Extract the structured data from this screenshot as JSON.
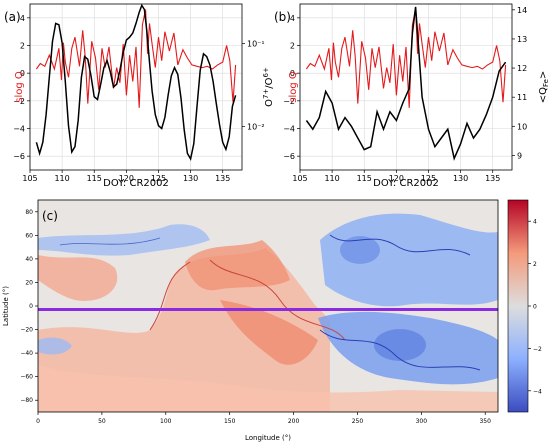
{
  "chart_data": [
    {
      "panel": "(a)",
      "type": "line",
      "xlabel": "DOY: CR2002",
      "ylabel_left": "slog Q",
      "ylabel_right": "O7+/O6+",
      "xlim": [
        105,
        138
      ],
      "ylim_left": [
        -7,
        5
      ],
      "ylim_right_log": [
        0.003,
        0.3
      ],
      "xticks": [
        105,
        110,
        115,
        120,
        125,
        130,
        135
      ],
      "yticks_left": [
        -6,
        -4,
        -2,
        0,
        2,
        4
      ],
      "yticks_right": [
        "10⁻²",
        "10⁻¹"
      ],
      "grid": true,
      "series": [
        {
          "label": "slog Q",
          "color": "#e41a1c",
          "x": [
            106,
            106.6,
            107.3,
            108,
            108.8,
            109.5,
            109.9,
            110.2,
            110.5,
            111,
            111.5,
            112,
            112.7,
            113.2,
            113.6,
            114,
            114.6,
            115.2,
            115.7,
            116.2,
            116.7,
            117.3,
            118,
            118.5,
            119,
            119.5,
            120,
            120.5,
            121,
            121.5,
            122,
            122.5,
            123,
            123.3,
            123.6,
            124,
            124.5,
            125,
            125.5,
            126,
            126.7,
            127.4,
            128,
            128.8,
            129.5,
            130.2,
            131,
            131.8,
            132.6,
            133.4,
            134.2,
            135,
            135.6,
            136.1,
            136.6,
            137
          ],
          "y": [
            0.3,
            0.7,
            0.5,
            1.3,
            0.3,
            1.8,
            -0.5,
            2.2,
            0.8,
            -0.3,
            1.8,
            2.6,
            0.5,
            3.1,
            1.2,
            -2.2,
            2.3,
            1.1,
            -1.2,
            1.8,
            0.4,
            1.9,
            -1.1,
            0.4,
            -0.7,
            2.1,
            -1.6,
            1.3,
            -0.6,
            1.9,
            -2.5,
            3.5,
            4.6,
            1.4,
            3.6,
            2.1,
            0.4,
            2.6,
            0.9,
            3.0,
            1.6,
            2.9,
            0.6,
            1.7,
            1.1,
            0.6,
            0.5,
            0.4,
            0.5,
            0.3,
            0.6,
            0.8,
            2.0,
            0.9,
            -2.1,
            0.6
          ]
        },
        {
          "label": "O7+/O6+",
          "color": "#000000",
          "x": [
            106,
            106.5,
            107,
            107.5,
            108,
            108.5,
            109,
            109.5,
            110,
            110.5,
            111,
            111.5,
            112,
            112.5,
            113,
            113.5,
            114,
            114.5,
            115,
            115.5,
            116,
            116.5,
            117,
            117.5,
            118,
            118.5,
            119,
            119.5,
            120,
            120.5,
            121,
            121.5,
            122,
            122.4,
            122.8,
            123.2,
            123.6,
            124,
            124.5,
            125,
            125.5,
            126,
            126.5,
            127,
            127.5,
            128,
            128.5,
            129,
            129.5,
            130,
            130.5,
            131,
            131.5,
            132,
            132.5,
            133,
            133.5,
            134,
            134.5,
            135,
            135.5,
            136,
            136.5,
            137
          ],
          "y": [
            -5.0,
            -5.8,
            -5.0,
            -3.0,
            -0.3,
            2.3,
            3.6,
            3.5,
            2.2,
            -0.6,
            -3.8,
            -5.7,
            -5.3,
            -3.4,
            -0.3,
            1.2,
            1.0,
            -0.2,
            -1.7,
            -1.9,
            -0.8,
            0.4,
            0.9,
            0.1,
            -1.0,
            -0.8,
            0.2,
            1.5,
            2.4,
            2.6,
            2.9,
            3.6,
            4.4,
            4.9,
            4.6,
            3.0,
            0.8,
            -1.3,
            -3.0,
            -3.8,
            -4.0,
            -3.2,
            -1.6,
            -0.2,
            0.4,
            -0.1,
            -1.8,
            -4.1,
            -5.8,
            -6.2,
            -5.1,
            -2.4,
            0.2,
            1.4,
            1.2,
            0.6,
            -0.6,
            -2.2,
            -3.7,
            -5.0,
            -5.5,
            -4.6,
            -2.4,
            -1.6
          ]
        }
      ]
    },
    {
      "panel": "(b)",
      "type": "line",
      "xlabel": "DOY: CR2002",
      "ylabel_left": "slog Q",
      "ylabel_right": "<Q_Fe>",
      "xlim": [
        105,
        138
      ],
      "ylim_left": [
        -7,
        5
      ],
      "ylim_right": [
        8.5,
        14.2
      ],
      "xticks": [
        105,
        110,
        115,
        120,
        125,
        130,
        135
      ],
      "yticks_left": [
        -6,
        -4,
        -2,
        0,
        2,
        4
      ],
      "yticks_right": [
        9,
        10,
        11,
        12,
        13,
        14
      ],
      "grid": true,
      "series": [
        {
          "label": "slog Q",
          "color": "#e41a1c",
          "x": [
            106,
            106.6,
            107.3,
            108,
            108.8,
            109.5,
            109.9,
            110.2,
            110.5,
            111,
            111.5,
            112,
            112.7,
            113.2,
            113.6,
            114,
            114.6,
            115.2,
            115.7,
            116.2,
            116.7,
            117.3,
            118,
            118.5,
            119,
            119.5,
            120,
            120.5,
            121,
            121.5,
            122,
            122.5,
            123,
            123.3,
            123.6,
            124,
            124.5,
            125,
            125.5,
            126,
            126.7,
            127.4,
            128,
            128.8,
            129.5,
            130.2,
            131,
            131.8,
            132.6,
            133.4,
            134.2,
            135,
            135.6,
            136.1,
            136.6,
            137
          ],
          "y": [
            0.3,
            0.7,
            0.5,
            1.3,
            0.3,
            1.8,
            -0.5,
            2.2,
            0.8,
            -0.3,
            1.8,
            2.6,
            0.5,
            3.1,
            1.2,
            -2.2,
            2.3,
            1.1,
            -1.2,
            1.8,
            0.4,
            1.9,
            -1.1,
            0.4,
            -0.7,
            2.1,
            -1.6,
            1.3,
            -0.6,
            1.9,
            -2.5,
            3.5,
            4.6,
            1.4,
            3.6,
            2.1,
            0.4,
            2.6,
            0.9,
            3.0,
            1.6,
            2.9,
            0.6,
            1.7,
            1.1,
            0.6,
            0.5,
            0.4,
            0.5,
            0.3,
            0.6,
            0.8,
            2.0,
            0.9,
            -2.1,
            0.6
          ]
        },
        {
          "label": "<Q_Fe>",
          "color": "#000000",
          "x": [
            106,
            107,
            108,
            109,
            110,
            111,
            112,
            113,
            114,
            115,
            116,
            117,
            118,
            119,
            120,
            121,
            122,
            122.5,
            123,
            123.5,
            124,
            125,
            126,
            127,
            128,
            129,
            130,
            131,
            132,
            133,
            134,
            135,
            136,
            137
          ],
          "y": [
            10.2,
            9.9,
            10.3,
            11.2,
            10.8,
            9.9,
            10.3,
            10.0,
            9.6,
            9.2,
            9.3,
            10.5,
            9.9,
            10.5,
            10.2,
            10.8,
            11.3,
            13.2,
            14.1,
            12.6,
            11.0,
            9.9,
            9.3,
            9.6,
            9.9,
            8.9,
            9.4,
            10.1,
            9.6,
            9.9,
            10.4,
            11.0,
            11.9,
            12.2
          ]
        }
      ]
    },
    {
      "panel": "(c)",
      "type": "heatmap",
      "xlabel": "Longitude (°)",
      "ylabel": "Latitude (°)",
      "xlim": [
        0,
        360
      ],
      "ylim": [
        -90,
        90
      ],
      "xticks": [
        0,
        50,
        100,
        150,
        200,
        250,
        300,
        350
      ],
      "yticks": [
        -80,
        -60,
        -40,
        -20,
        0,
        20,
        40,
        60,
        80
      ],
      "colormap": "coolwarm",
      "colorbar_ticks": [
        -4,
        -2,
        0,
        2,
        4
      ],
      "clim": [
        -5,
        5
      ],
      "trajectory_color": "#8a2be2",
      "trajectory_latitude": -3
    }
  ]
}
